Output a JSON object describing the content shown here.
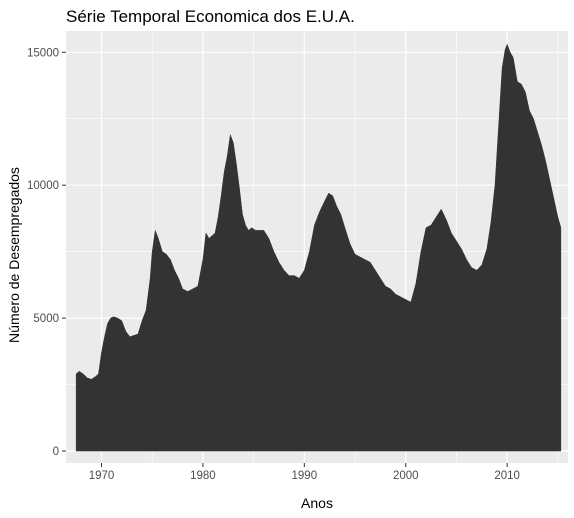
{
  "chart_data": {
    "type": "area",
    "title": "Série Temporal Economica dos E.U.A.",
    "xlabel": "Anos",
    "ylabel": "Número de Desempregados",
    "xlim": [
      1966.5,
      2016.0
    ],
    "ylim": [
      -450,
      15800
    ],
    "x_ticks": [
      1970,
      1980,
      1990,
      2000,
      2010
    ],
    "y_ticks": [
      0,
      5000,
      10000,
      15000
    ],
    "grid": true,
    "legend": "none",
    "colors": {
      "panel": "#ebebeb",
      "grid": "#ffffff",
      "fill": "#333333"
    },
    "series": [
      {
        "x": [
          1967.5,
          1967.8,
          1968.2,
          1968.6,
          1969.0,
          1969.4,
          1969.7,
          1970.0,
          1970.3,
          1970.6,
          1970.9,
          1971.2,
          1971.6,
          1972.0,
          1972.4,
          1972.8,
          1973.2,
          1973.6,
          1974.0,
          1974.4,
          1974.8,
          1975.0,
          1975.3,
          1975.6,
          1976.0,
          1976.4,
          1976.8,
          1977.2,
          1977.6,
          1978.0,
          1978.5,
          1979.0,
          1979.5,
          1980.0,
          1980.3,
          1980.6,
          1980.9,
          1981.2,
          1981.5,
          1981.8,
          1982.1,
          1982.4,
          1982.7,
          1983.0,
          1983.3,
          1983.6,
          1983.9,
          1984.2,
          1984.5,
          1984.8,
          1985.2,
          1985.6,
          1986.0,
          1986.5,
          1987.0,
          1987.5,
          1988.0,
          1988.5,
          1989.0,
          1989.5,
          1990.0,
          1990.5,
          1991.0,
          1991.5,
          1992.0,
          1992.4,
          1992.8,
          1993.2,
          1993.6,
          1994.0,
          1994.5,
          1995.0,
          1995.5,
          1996.0,
          1996.5,
          1997.0,
          1997.5,
          1998.0,
          1998.5,
          1999.0,
          1999.5,
          2000.0,
          2000.5,
          2001.0,
          2001.5,
          2002.0,
          2002.5,
          2003.0,
          2003.5,
          2004.0,
          2004.5,
          2005.0,
          2005.5,
          2006.0,
          2006.5,
          2007.0,
          2007.5,
          2008.0,
          2008.4,
          2008.8,
          2009.2,
          2009.5,
          2009.8,
          2010.0,
          2010.3,
          2010.6,
          2011.0,
          2011.4,
          2011.8,
          2012.2,
          2012.6,
          2013.0,
          2013.4,
          2013.8,
          2014.2,
          2014.6,
          2015.0,
          2015.3
        ],
        "values": [
          2900,
          3000,
          2900,
          2750,
          2700,
          2800,
          2900,
          3700,
          4300,
          4800,
          5000,
          5050,
          5000,
          4900,
          4500,
          4300,
          4350,
          4400,
          4900,
          5300,
          6500,
          7500,
          8300,
          8000,
          7500,
          7400,
          7200,
          6800,
          6500,
          6100,
          6000,
          6100,
          6200,
          7200,
          8200,
          8000,
          8100,
          8200,
          8800,
          9600,
          10500,
          11100,
          11900,
          11600,
          10800,
          9900,
          8900,
          8500,
          8300,
          8400,
          8300,
          8300,
          8300,
          8000,
          7500,
          7100,
          6800,
          6600,
          6600,
          6500,
          6800,
          7500,
          8500,
          9000,
          9400,
          9700,
          9600,
          9200,
          8900,
          8400,
          7800,
          7400,
          7300,
          7200,
          7100,
          6800,
          6500,
          6200,
          6100,
          5900,
          5800,
          5700,
          5600,
          6300,
          7500,
          8400,
          8500,
          8800,
          9100,
          8700,
          8200,
          7900,
          7600,
          7200,
          6900,
          6800,
          7000,
          7600,
          8600,
          10000,
          12500,
          14400,
          15100,
          15300,
          15000,
          14800,
          13900,
          13800,
          13500,
          12800,
          12500,
          12000,
          11500,
          10900,
          10200,
          9500,
          8800,
          8400
        ]
      }
    ]
  }
}
